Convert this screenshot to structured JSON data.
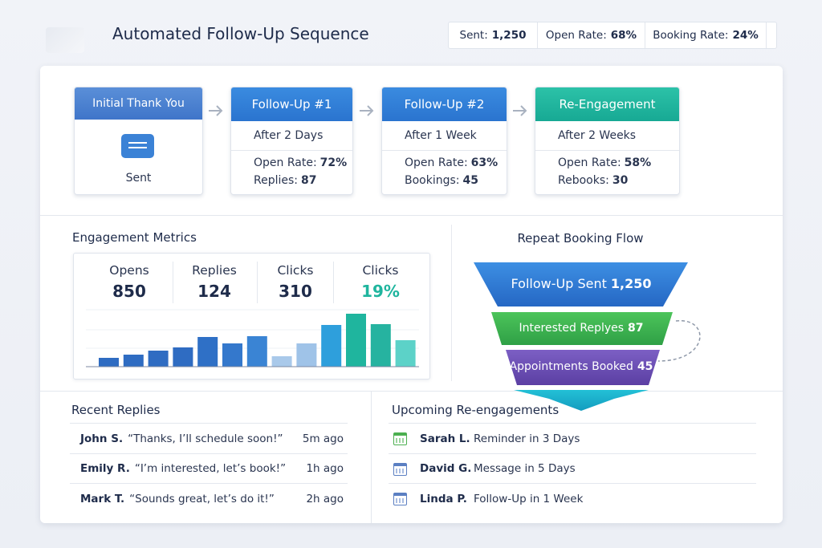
{
  "header": {
    "title": "Automated Follow-Up Sequence",
    "stats": [
      {
        "label": "Sent:",
        "value": "1,250"
      },
      {
        "label": "Open Rate:",
        "value": "68%"
      },
      {
        "label": "Booking Rate:",
        "value": "24%"
      }
    ]
  },
  "sequence": [
    {
      "title": "Initial Thank You",
      "status": "Sent"
    },
    {
      "title": "Follow-Up #1",
      "delay": "After 2 Days",
      "metrics": [
        {
          "label": "Open Rate:",
          "value": "72%"
        },
        {
          "label": "Replies:",
          "value": "87"
        }
      ]
    },
    {
      "title": "Follow-Up #2",
      "delay": "After 1 Week",
      "metrics": [
        {
          "label": "Open Rate:",
          "value": "63%"
        },
        {
          "label": "Bookings:",
          "value": "45"
        }
      ]
    },
    {
      "title": "Re-Engagement",
      "delay": "After 2 Weeks",
      "metrics": [
        {
          "label": "Open Rate:",
          "value": "58%"
        },
        {
          "label": "Rebooks:",
          "value": "30"
        }
      ]
    }
  ],
  "engagement": {
    "title": "Engagement Metrics",
    "metrics": [
      {
        "label": "Opens",
        "value": "850"
      },
      {
        "label": "Replies",
        "value": "124"
      },
      {
        "label": "Clicks",
        "value": "310"
      },
      {
        "label": "Clicks",
        "value": "19%"
      }
    ]
  },
  "chart_data": {
    "type": "bar",
    "values": [
      11,
      15,
      20,
      24,
      37,
      29,
      38,
      13,
      29,
      52,
      66,
      53,
      33
    ],
    "colors": [
      "#2f6cc2",
      "#2f6cc2",
      "#2f6cc2",
      "#2f6cc2",
      "#2f70c6",
      "#3478cc",
      "#3a84d4",
      "#a9c9ea",
      "#9fc3e8",
      "#2e9fdc",
      "#1fb59e",
      "#26b3a0",
      "#5cd2c8"
    ]
  },
  "funnel": {
    "title": "Repeat Booking Flow",
    "stages": [
      {
        "label": "Follow-Up Sent",
        "value": "1,250"
      },
      {
        "label": "Interested Replyes",
        "value": "87"
      },
      {
        "label": "Appointments Booked",
        "value": "45"
      }
    ]
  },
  "recent_replies": {
    "title": "Recent Replies",
    "items": [
      {
        "name": "John S.",
        "quote": "“Thanks, I’ll schedule soon!”",
        "time": "5m ago"
      },
      {
        "name": "Emily R.",
        "quote": "“I’m interested, let’s book!”",
        "time": "1h ago"
      },
      {
        "name": "Mark T.",
        "quote": "“Sounds great, let’s do it!”",
        "time": "2h ago"
      }
    ]
  },
  "upcoming": {
    "title": "Upcoming Re-engagements",
    "items": [
      {
        "name": "Sarah L.",
        "text": "Reminder in 3 Days"
      },
      {
        "name": "David G.",
        "text": "Message in 5 Days"
      },
      {
        "name": "Linda P.",
        "text": "Follow-Up in 1 Week"
      }
    ]
  }
}
